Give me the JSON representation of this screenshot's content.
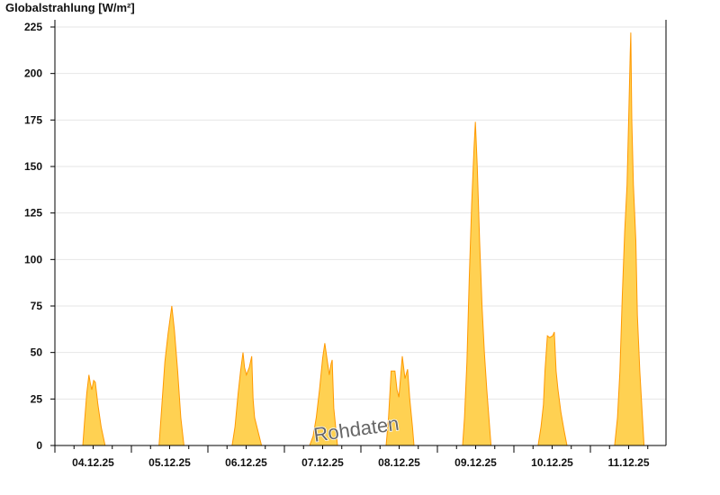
{
  "chart_data": {
    "type": "area",
    "title": "Globalstrahlung [W/m²]",
    "xlabel": "",
    "ylabel": "",
    "ylim": [
      0,
      230
    ],
    "yticks": [
      0,
      25,
      50,
      75,
      100,
      125,
      150,
      175,
      200,
      225
    ],
    "grid": true,
    "categories": [
      "04.12.25",
      "05.12.25",
      "06.12.25",
      "07.12.25",
      "08.12.25",
      "09.12.25",
      "10.12.25",
      "11.12.25"
    ],
    "colors": {
      "fill": "#ffd152",
      "stroke": "#ff9900",
      "grid": "#e6e6e6",
      "axis": "#000000"
    },
    "watermark": "Rohdaten",
    "series": [
      {
        "date": "04.12.25",
        "points": [
          [
            "08:45",
            0
          ],
          [
            "09:15",
            12
          ],
          [
            "10:00",
            28
          ],
          [
            "10:40",
            38
          ],
          [
            "11:10",
            33
          ],
          [
            "11:35",
            30
          ],
          [
            "12:10",
            35
          ],
          [
            "12:40",
            34
          ],
          [
            "13:30",
            22
          ],
          [
            "14:30",
            10
          ],
          [
            "15:45",
            0
          ]
        ]
      },
      {
        "date": "05.12.25",
        "points": [
          [
            "08:40",
            0
          ],
          [
            "09:30",
            20
          ],
          [
            "10:30",
            45
          ],
          [
            "11:30",
            60
          ],
          [
            "12:40",
            75
          ],
          [
            "13:30",
            62
          ],
          [
            "14:30",
            40
          ],
          [
            "15:30",
            15
          ],
          [
            "16:30",
            0
          ]
        ]
      },
      {
        "date": "06.12.25",
        "points": [
          [
            "07:35",
            0
          ],
          [
            "08:30",
            10
          ],
          [
            "09:30",
            28
          ],
          [
            "10:15",
            40
          ],
          [
            "11:00",
            50
          ],
          [
            "11:30",
            42
          ],
          [
            "12:05",
            38
          ],
          [
            "13:00",
            42
          ],
          [
            "13:45",
            48
          ],
          [
            "14:10",
            25
          ],
          [
            "14:40",
            15
          ],
          [
            "15:40",
            8
          ],
          [
            "16:50",
            0
          ]
        ]
      },
      {
        "date": "07.12.25",
        "points": [
          [
            "07:55",
            0
          ],
          [
            "09:00",
            5
          ],
          [
            "10:00",
            15
          ],
          [
            "11:00",
            30
          ],
          [
            "12:00",
            47
          ],
          [
            "12:40",
            55
          ],
          [
            "13:30",
            45
          ],
          [
            "14:05",
            38
          ],
          [
            "14:40",
            44
          ],
          [
            "15:00",
            46
          ],
          [
            "15:30",
            20
          ],
          [
            "16:40",
            0
          ]
        ]
      },
      {
        "date": "08.12.25",
        "points": [
          [
            "07:55",
            0
          ],
          [
            "08:40",
            15
          ],
          [
            "09:30",
            40
          ],
          [
            "10:40",
            40
          ],
          [
            "11:20",
            30
          ],
          [
            "11:55",
            26
          ],
          [
            "12:30",
            38
          ],
          [
            "13:00",
            48
          ],
          [
            "13:50",
            36
          ],
          [
            "14:40",
            41
          ],
          [
            "15:20",
            25
          ],
          [
            "16:10",
            10
          ],
          [
            "16:40",
            0
          ]
        ]
      },
      {
        "date": "09.12.25",
        "points": [
          [
            "07:55",
            0
          ],
          [
            "08:30",
            15
          ],
          [
            "09:15",
            45
          ],
          [
            "10:00",
            90
          ],
          [
            "10:45",
            130
          ],
          [
            "11:30",
            160
          ],
          [
            "11:55",
            174
          ],
          [
            "12:30",
            150
          ],
          [
            "13:15",
            110
          ],
          [
            "14:00",
            75
          ],
          [
            "14:45",
            50
          ],
          [
            "15:30",
            30
          ],
          [
            "16:50",
            0
          ]
        ]
      },
      {
        "date": "10.12.25",
        "points": [
          [
            "07:35",
            0
          ],
          [
            "08:30",
            10
          ],
          [
            "09:15",
            22
          ],
          [
            "09:45",
            40
          ],
          [
            "10:30",
            59
          ],
          [
            "11:15",
            58
          ],
          [
            "12:10",
            59
          ],
          [
            "12:40",
            61
          ],
          [
            "13:15",
            40
          ],
          [
            "13:50",
            30
          ],
          [
            "14:45",
            18
          ],
          [
            "15:45",
            8
          ],
          [
            "16:40",
            0
          ]
        ]
      },
      {
        "date": "11.12.25",
        "points": [
          [
            "07:35",
            0
          ],
          [
            "08:30",
            15
          ],
          [
            "09:15",
            40
          ],
          [
            "10:00",
            80
          ],
          [
            "10:45",
            115
          ],
          [
            "11:30",
            140
          ],
          [
            "12:00",
            175
          ],
          [
            "12:30",
            212
          ],
          [
            "12:40",
            222
          ],
          [
            "13:00",
            175
          ],
          [
            "13:30",
            140
          ],
          [
            "14:15",
            110
          ],
          [
            "14:45",
            70
          ],
          [
            "15:30",
            40
          ],
          [
            "16:50",
            0
          ]
        ]
      }
    ]
  }
}
